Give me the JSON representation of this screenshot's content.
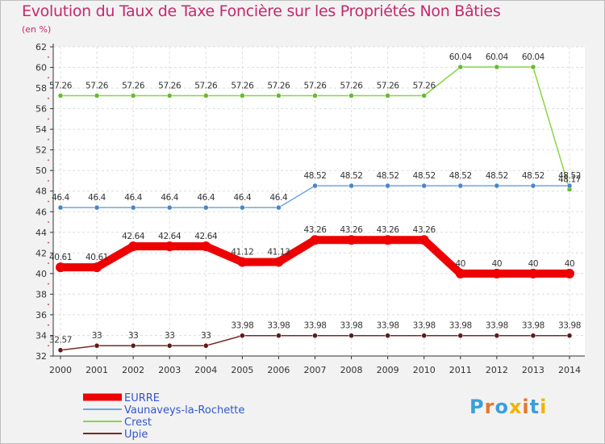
{
  "title": "Evolution du Taux de Taxe Foncière sur les Propriétés Non Bâties",
  "subtitle": "(en %)",
  "logo": {
    "letters": [
      "P",
      "r",
      "o",
      "x",
      "i",
      "t",
      "i"
    ],
    "colors": [
      "#3aa0d8",
      "#e8762c",
      "#3aa0d8",
      "#f0b400",
      "#e8762c",
      "#3aa0d8",
      "#f0b400"
    ]
  },
  "chart_data": {
    "type": "line",
    "x": [
      "2000",
      "2001",
      "2002",
      "2003",
      "2004",
      "2005",
      "2006",
      "2007",
      "2008",
      "2009",
      "2010",
      "2011",
      "2012",
      "2013",
      "2014"
    ],
    "ylim": [
      32,
      62
    ],
    "yticks": [
      "32",
      "34",
      "36",
      "38",
      "40",
      "42",
      "44",
      "46",
      "48",
      "50",
      "52",
      "54",
      "56",
      "58",
      "60",
      "62"
    ],
    "grid": true,
    "legend_position": "bottom-left",
    "series": [
      {
        "name": "Crest",
        "color": "#88d44a",
        "marker": "#66bb33",
        "thick": false,
        "values": [
          57.26,
          57.26,
          57.26,
          57.26,
          57.26,
          57.26,
          57.26,
          57.26,
          57.26,
          57.26,
          57.26,
          60.04,
          60.04,
          60.04,
          48.17
        ],
        "labels": [
          "57.26",
          "57.26",
          "57.26",
          "57.26",
          "57.26",
          "57.26",
          "57.26",
          "57.26",
          "57.26",
          "57.26",
          "57.26",
          "60.04",
          "60.04",
          "60.04",
          "48.17"
        ]
      },
      {
        "name": "Vaunaveys-la-Rochette",
        "color": "#6fa8dc",
        "marker": "#4a86c5",
        "thick": false,
        "values": [
          46.4,
          46.4,
          46.4,
          46.4,
          46.4,
          46.4,
          46.4,
          48.52,
          48.52,
          48.52,
          48.52,
          48.52,
          48.52,
          48.52,
          48.52
        ],
        "labels": [
          "46.4",
          "46.4",
          "46.4",
          "46.4",
          "46.4",
          "46.4",
          "46.4",
          "48.52",
          "48.52",
          "48.52",
          "48.52",
          "48.52",
          "48.52",
          "48.52",
          "48.52"
        ]
      },
      {
        "name": "EURRE",
        "color": "#ee0000",
        "marker": "#ee0000",
        "thick": true,
        "values": [
          40.61,
          40.61,
          42.64,
          42.64,
          42.64,
          41.12,
          41.13,
          43.26,
          43.26,
          43.26,
          43.26,
          40,
          40,
          40,
          40
        ],
        "labels": [
          "40.61",
          "40.61",
          "42.64",
          "42.64",
          "42.64",
          "41.12",
          "41.13",
          "43.26",
          "43.26",
          "43.26",
          "43.26",
          "40",
          "40",
          "40",
          "40"
        ]
      },
      {
        "name": "Upie",
        "color": "#7a2a2a",
        "marker": "#5c1a1a",
        "thick": false,
        "values": [
          32.57,
          33,
          33,
          33,
          33,
          33.98,
          33.98,
          33.98,
          33.98,
          33.98,
          33.98,
          33.98,
          33.98,
          33.98,
          33.98
        ],
        "labels": [
          "32.57",
          "33",
          "33",
          "33",
          "33",
          "33.98",
          "33.98",
          "33.98",
          "33.98",
          "33.98",
          "33.98",
          "33.98",
          "33.98",
          "33.98",
          "33.98"
        ]
      }
    ],
    "legend": [
      "EURRE",
      "Vaunaveys-la-Rochette",
      "Crest",
      "Upie"
    ]
  }
}
